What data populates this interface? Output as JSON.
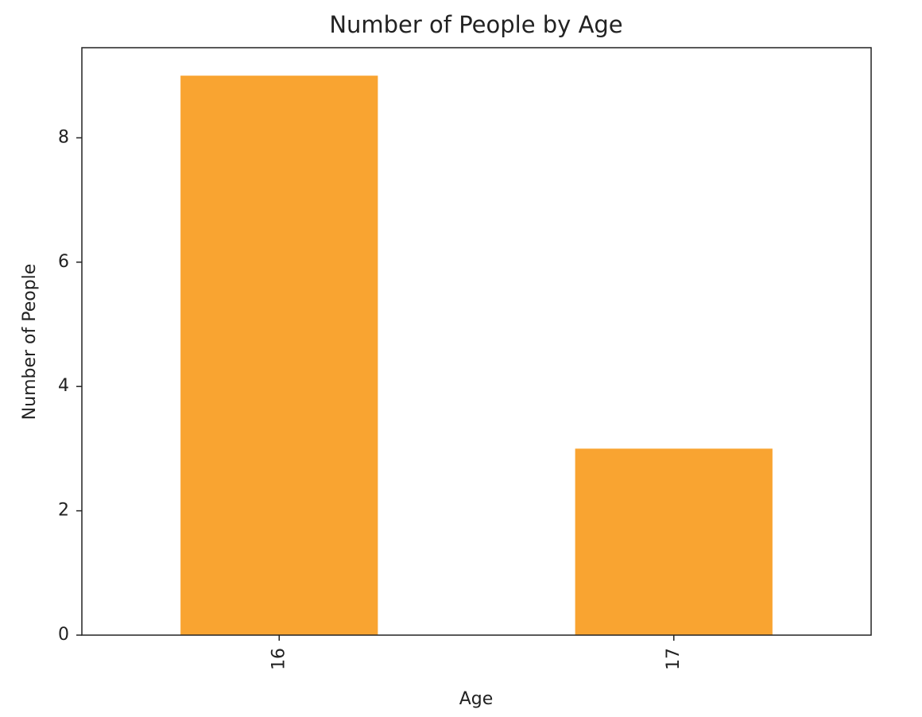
{
  "chart_data": {
    "type": "bar",
    "title": "Number of People by Age",
    "x_label": "Age",
    "y_label": "Number of People",
    "categories": [
      "16",
      "17"
    ],
    "values": [
      9,
      3
    ],
    "color": "#f9a431",
    "ylim": [
      0,
      9.45
    ],
    "yticks": [
      0,
      2,
      4,
      6,
      8
    ],
    "grid": false
  }
}
